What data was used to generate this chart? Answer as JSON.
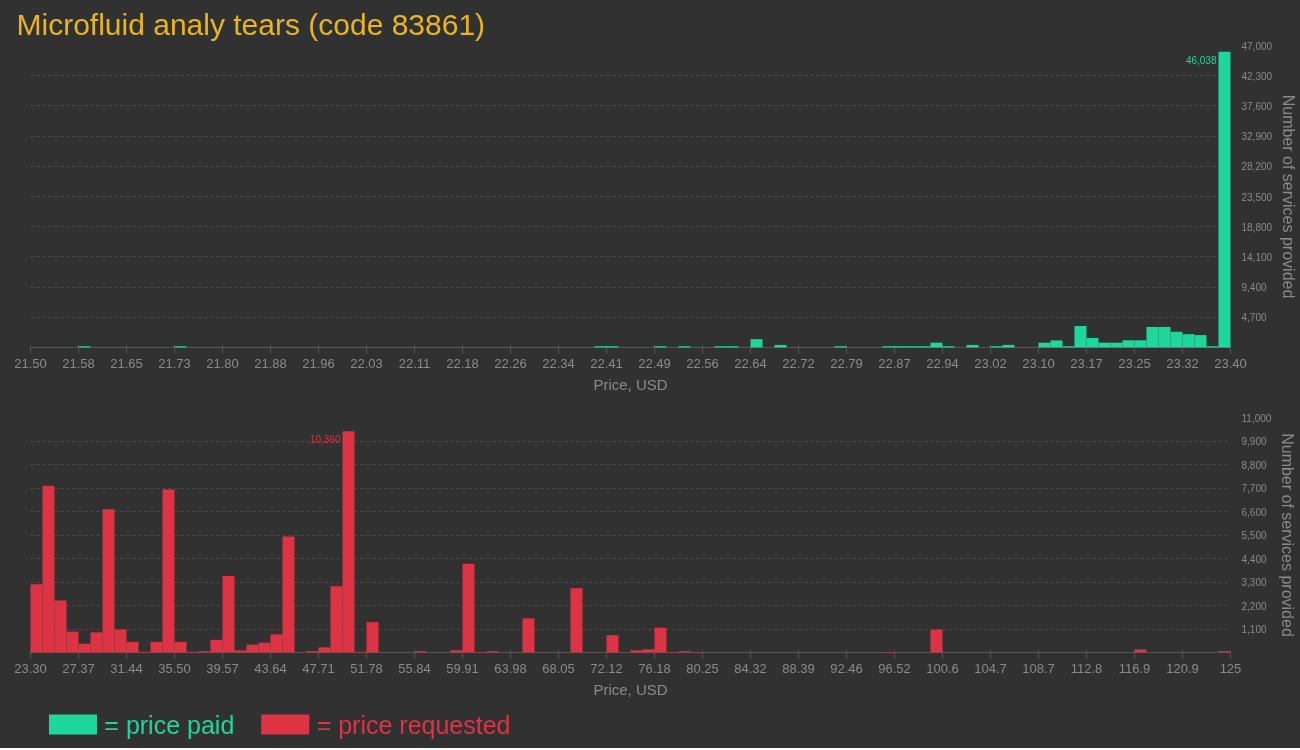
{
  "chart_data": [
    {
      "type": "histogram",
      "title": "Microfluid analy tears (code 83861)",
      "xlabel": "Price, USD",
      "ylabel": "Number of services provided",
      "grid": "y",
      "legend": "bottom",
      "bins": [
        21.5,
        21.519,
        21.538,
        21.557,
        21.576,
        21.595,
        21.614,
        21.633,
        21.652,
        21.671,
        21.69,
        21.709,
        21.728,
        21.747,
        21.766,
        21.785,
        21.804,
        21.823,
        21.842,
        21.861,
        21.88,
        21.899,
        21.918,
        21.937,
        21.956,
        21.975,
        21.994,
        22.013,
        22.032,
        22.051,
        22.07,
        22.089,
        22.108,
        22.127,
        22.146,
        22.165,
        22.184,
        22.203,
        22.222,
        22.241,
        22.26,
        22.279,
        22.298,
        22.317,
        22.336,
        22.355,
        22.374,
        22.393,
        22.412,
        22.431,
        22.45,
        22.469,
        22.488,
        22.507,
        22.526,
        22.545,
        22.564,
        22.583,
        22.602,
        22.621,
        22.64,
        22.659,
        22.678,
        22.697,
        22.716,
        22.735,
        22.754,
        22.773,
        22.792,
        22.811,
        22.83,
        22.849,
        22.868,
        22.887,
        22.906,
        22.925,
        22.944,
        22.963,
        22.982,
        23.001,
        23.02,
        23.039,
        23.058,
        23.077,
        23.096,
        23.115,
        23.134,
        23.153,
        23.172,
        23.191,
        23.21,
        23.229,
        23.248,
        23.267,
        23.286,
        23.305,
        23.324,
        23.343,
        23.362,
        23.381,
        23.4
      ],
      "series": [
        {
          "name": "= price paid",
          "color": "#1fd69b",
          "values": [
            0,
            0,
            0,
            0,
            200,
            0,
            0,
            0,
            0,
            0,
            0,
            0,
            200,
            0,
            0,
            0,
            0,
            0,
            0,
            0,
            0,
            0,
            0,
            0,
            0,
            0,
            0,
            0,
            0,
            0,
            0,
            0,
            0,
            0,
            0,
            0,
            0,
            0,
            0,
            0,
            0,
            0,
            0,
            0,
            0,
            0,
            0,
            200,
            200,
            0,
            0,
            0,
            200,
            0,
            200,
            0,
            0,
            200,
            200,
            0,
            1300,
            0,
            400,
            0,
            0,
            0,
            0,
            200,
            0,
            0,
            0,
            200,
            200,
            200,
            200,
            750,
            200,
            0,
            400,
            0,
            200,
            400,
            0,
            0,
            750,
            1100,
            200,
            3350,
            1480,
            750,
            750,
            1120,
            1120,
            3200,
            3200,
            2450,
            2080,
            1930,
            200,
            46038
          ]
        }
      ],
      "annotations": [
        {
          "text": "46,038",
          "x": 23.3905,
          "y": 46038
        }
      ],
      "xlim": [
        21.5,
        23.4
      ],
      "xticks": [
        {
          "value": 21.5,
          "label": "21.50"
        },
        {
          "value": 21.576,
          "label": "21.58"
        },
        {
          "value": 21.652,
          "label": "21.65"
        },
        {
          "value": 21.728,
          "label": "21.73"
        },
        {
          "value": 21.804,
          "label": "21.80"
        },
        {
          "value": 21.88,
          "label": "21.88"
        },
        {
          "value": 21.956,
          "label": "21.96"
        },
        {
          "value": 22.032,
          "label": "22.03"
        },
        {
          "value": 22.108,
          "label": "22.11"
        },
        {
          "value": 22.184,
          "label": "22.18"
        },
        {
          "value": 22.26,
          "label": "22.26"
        },
        {
          "value": 22.336,
          "label": "22.34"
        },
        {
          "value": 22.412,
          "label": "22.41"
        },
        {
          "value": 22.488,
          "label": "22.49"
        },
        {
          "value": 22.564,
          "label": "22.56"
        },
        {
          "value": 22.64,
          "label": "22.64"
        },
        {
          "value": 22.716,
          "label": "22.72"
        },
        {
          "value": 22.792,
          "label": "22.79"
        },
        {
          "value": 22.868,
          "label": "22.87"
        },
        {
          "value": 22.944,
          "label": "22.94"
        },
        {
          "value": 23.02,
          "label": "23.02"
        },
        {
          "value": 23.096,
          "label": "23.10"
        },
        {
          "value": 23.172,
          "label": "23.17"
        },
        {
          "value": 23.248,
          "label": "23.25"
        },
        {
          "value": 23.324,
          "label": "23.32"
        },
        {
          "value": 23.4,
          "label": "23.40"
        }
      ],
      "ylim": [
        0,
        47000
      ],
      "yticks": [
        {
          "value": 4700,
          "label": "4,700"
        },
        {
          "value": 9400,
          "label": "9,400"
        },
        {
          "value": 14100,
          "label": "14,100"
        },
        {
          "value": 18800,
          "label": "18,800"
        },
        {
          "value": 23500,
          "label": "23,500"
        },
        {
          "value": 28200,
          "label": "28,200"
        },
        {
          "value": 32900,
          "label": "32,900"
        },
        {
          "value": 37600,
          "label": "37,600"
        },
        {
          "value": 42300,
          "label": "42,300"
        },
        {
          "value": 47000,
          "label": "47,000"
        }
      ]
    },
    {
      "type": "histogram",
      "xlabel": "Price, USD",
      "ylabel": "Number of services provided",
      "grid": "y",
      "legend": "bottom",
      "bins": [
        23.3,
        24.317,
        25.334,
        26.351,
        27.368,
        28.385,
        29.402,
        30.419,
        31.436,
        32.453,
        33.47,
        34.487,
        35.504,
        36.521,
        37.538,
        38.555,
        39.572,
        40.589,
        41.606,
        42.623,
        43.64,
        44.657,
        45.674,
        46.691,
        47.708,
        48.725,
        49.742,
        50.759,
        51.776,
        52.793,
        53.81,
        54.827,
        55.844,
        56.861,
        57.878,
        58.895,
        59.912,
        60.929,
        61.946,
        62.963,
        63.98,
        64.997,
        66.014,
        67.031,
        68.048,
        69.065,
        70.082,
        71.099,
        72.116,
        73.133,
        74.15,
        75.167,
        76.184,
        77.201,
        78.218,
        79.235,
        80.252,
        81.269,
        82.286,
        83.303,
        84.32,
        85.337,
        86.354,
        87.371,
        88.388,
        89.405,
        90.422,
        91.439,
        92.456,
        93.473,
        94.49,
        95.507,
        96.524,
        97.541,
        98.558,
        99.575,
        100.592,
        101.609,
        102.626,
        103.643,
        104.66,
        105.677,
        106.694,
        107.711,
        108.728,
        109.745,
        110.762,
        111.779,
        112.796,
        113.813,
        114.83,
        115.847,
        116.864,
        117.881,
        118.898,
        119.915,
        120.932,
        121.949,
        122.966,
        123.983,
        125.0
      ],
      "series": [
        {
          "name": "= price requested",
          "color": "#dd3344",
          "values": [
            3200,
            7800,
            2440,
            980,
            410,
            940,
            6700,
            1070,
            500,
            30,
            500,
            7630,
            500,
            30,
            60,
            590,
            3580,
            100,
            370,
            460,
            850,
            5430,
            0,
            60,
            240,
            3100,
            10360,
            30,
            1420,
            0,
            0,
            0,
            60,
            0,
            0,
            100,
            4150,
            20,
            60,
            0,
            0,
            1600,
            0,
            0,
            0,
            3010,
            0,
            0,
            810,
            0,
            100,
            150,
            1160,
            20,
            60,
            20,
            0,
            0,
            0,
            0,
            0,
            0,
            0,
            0,
            0,
            0,
            0,
            0,
            0,
            0,
            0,
            20,
            0,
            0,
            0,
            1070,
            0,
            0,
            0,
            0,
            0,
            0,
            0,
            0,
            0,
            0,
            0,
            0,
            0,
            0,
            0,
            0,
            150,
            0,
            0,
            0,
            0,
            0,
            0,
            60
          ]
        }
      ],
      "annotations": [
        {
          "text": "10,360",
          "x": 50.2505,
          "y": 10360
        }
      ],
      "xlim": [
        23.3,
        125.0
      ],
      "xticks": [
        {
          "value": 23.3,
          "label": "23.30"
        },
        {
          "value": 27.368,
          "label": "27.37"
        },
        {
          "value": 31.436,
          "label": "31.44"
        },
        {
          "value": 35.504,
          "label": "35.50"
        },
        {
          "value": 39.572,
          "label": "39.57"
        },
        {
          "value": 43.64,
          "label": "43.64"
        },
        {
          "value": 47.708,
          "label": "47.71"
        },
        {
          "value": 51.776,
          "label": "51.78"
        },
        {
          "value": 55.844,
          "label": "55.84"
        },
        {
          "value": 59.912,
          "label": "59.91"
        },
        {
          "value": 63.98,
          "label": "63.98"
        },
        {
          "value": 68.048,
          "label": "68.05"
        },
        {
          "value": 72.116,
          "label": "72.12"
        },
        {
          "value": 76.184,
          "label": "76.18"
        },
        {
          "value": 80.252,
          "label": "80.25"
        },
        {
          "value": 84.32,
          "label": "84.32"
        },
        {
          "value": 88.388,
          "label": "88.39"
        },
        {
          "value": 92.456,
          "label": "92.46"
        },
        {
          "value": 96.524,
          "label": "96.52"
        },
        {
          "value": 100.592,
          "label": "100.6"
        },
        {
          "value": 104.66,
          "label": "104.7"
        },
        {
          "value": 108.728,
          "label": "108.7"
        },
        {
          "value": 112.796,
          "label": "112.8"
        },
        {
          "value": 116.864,
          "label": "116.9"
        },
        {
          "value": 120.932,
          "label": "120.9"
        },
        {
          "value": 125.0,
          "label": "125"
        }
      ],
      "ylim": [
        0,
        11000
      ],
      "yticks": [
        {
          "value": 1100,
          "label": "1,100"
        },
        {
          "value": 2200,
          "label": "2,200"
        },
        {
          "value": 3300,
          "label": "3,300"
        },
        {
          "value": 4400,
          "label": "4,400"
        },
        {
          "value": 5500,
          "label": "5,500"
        },
        {
          "value": 6600,
          "label": "6,600"
        },
        {
          "value": 7700,
          "label": "7,700"
        },
        {
          "value": 8800,
          "label": "8,800"
        },
        {
          "value": 9900,
          "label": "9,900"
        },
        {
          "value": 11000,
          "label": "11,000"
        }
      ]
    }
  ]
}
